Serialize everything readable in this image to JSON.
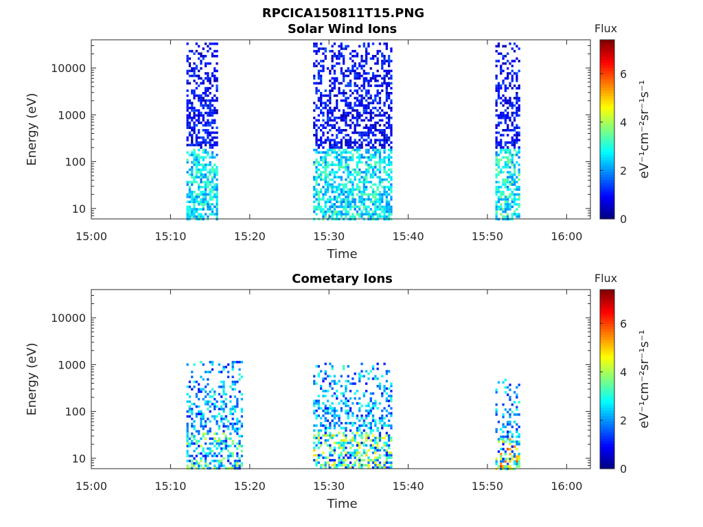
{
  "figure": {
    "title": "RPCICA150811T15.PNG"
  },
  "colorbar": {
    "title": "Flux",
    "label": "eV⁻¹cm⁻²sr⁻¹s⁻¹",
    "ticks": [
      "0",
      "2",
      "4",
      "6"
    ],
    "range": [
      0,
      7.4
    ],
    "colormap": "jet"
  },
  "chart_data": [
    {
      "type": "heatmap",
      "title": "Solar Wind Ions",
      "xlabel": "Time",
      "ylabel": "Energy (eV)",
      "y_scale": "log",
      "ylim": [
        6,
        40000
      ],
      "y_ticks": [
        "10",
        "100",
        "1000",
        "10000"
      ],
      "y_tick_values": [
        10,
        100,
        1000,
        10000
      ],
      "xlim": [
        "15:00",
        "16:03"
      ],
      "x_ticks": [
        "15:00",
        "15:10",
        "15:20",
        "15:30",
        "15:40",
        "15:50",
        "16:00"
      ],
      "colorbar_label": "Flux",
      "bursts": [
        {
          "start": "15:12",
          "end": "15:16",
          "energy_range": [
            6,
            35000
          ],
          "flux_low_energy": 3.2
        },
        {
          "start": "15:28",
          "end": "15:38",
          "energy_range": [
            6,
            35000
          ],
          "flux_low_energy": 3.2
        },
        {
          "start": "15:51",
          "end": "15:54",
          "energy_range": [
            6,
            35000
          ],
          "flux_low_energy": 3.4
        }
      ]
    },
    {
      "type": "heatmap",
      "title": "Cometary Ions",
      "xlabel": "Time",
      "ylabel": "Energy (eV)",
      "y_scale": "log",
      "ylim": [
        6,
        40000
      ],
      "y_ticks": [
        "10",
        "100",
        "1000",
        "10000"
      ],
      "y_tick_values": [
        10,
        100,
        1000,
        10000
      ],
      "xlim": [
        "15:00",
        "16:03"
      ],
      "x_ticks": [
        "15:00",
        "15:10",
        "15:20",
        "15:30",
        "15:40",
        "15:50",
        "16:00"
      ],
      "colorbar_label": "Flux",
      "bursts": [
        {
          "start": "15:12",
          "end": "15:19",
          "energy_range": [
            6,
            1200
          ],
          "flux_peak": 4.3
        },
        {
          "start": "15:28",
          "end": "15:38",
          "energy_range": [
            6,
            1100
          ],
          "flux_peak": 5.0
        },
        {
          "start": "15:51",
          "end": "15:54",
          "energy_range": [
            6,
            500
          ],
          "flux_peak": 6.0
        }
      ]
    }
  ]
}
